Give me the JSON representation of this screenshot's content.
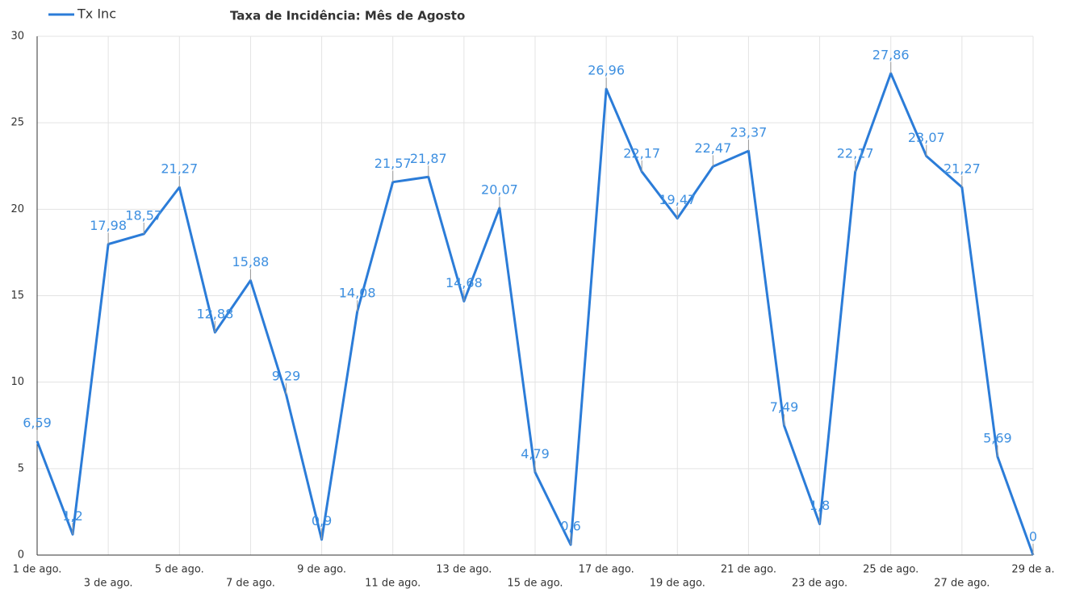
{
  "chart_data": {
    "type": "line",
    "title": "Taxa de Incidência:  Mês de Agosto",
    "categories": [
      "1 de ago.",
      null,
      "3 de ago.",
      null,
      "5 de ago.",
      null,
      "7 de ago.",
      null,
      "9 de ago.",
      null,
      "11 de ago.",
      null,
      "13 de ago.",
      null,
      "15 de ago.",
      null,
      "17 de ago.",
      null,
      "19 de ago.",
      null,
      "21 de ago.",
      null,
      "23 de ago.",
      null,
      "25 de ago.",
      null,
      "27 de ago.",
      null,
      "29 de a."
    ],
    "series": [
      {
        "name": "Tx Inc",
        "color": "#2b7cd8",
        "values": [
          6.59,
          1.2,
          17.98,
          18.57,
          21.27,
          12.88,
          15.88,
          9.29,
          0.9,
          14.08,
          21.57,
          21.87,
          14.68,
          20.07,
          4.79,
          0.6,
          26.96,
          22.17,
          19.47,
          22.47,
          23.37,
          7.49,
          1.8,
          22.17,
          27.86,
          23.07,
          21.27,
          5.69,
          0
        ],
        "value_labels": [
          "6,59",
          "1,2",
          "17,98",
          "18,57",
          "21,27",
          "12,88",
          "15,88",
          "9,29",
          "0,9",
          "14,08",
          "21,57",
          "21,87",
          "14,68",
          "20,07",
          "4,79",
          "0,6",
          "26,96",
          "22,17",
          "19,47",
          "22,47",
          "23,37",
          "7,49",
          "1,8",
          "22,17",
          "27,86",
          "23,07",
          "21,27",
          "5,69",
          "0"
        ]
      }
    ],
    "ylim": [
      0,
      30
    ],
    "yticks": [
      0,
      5,
      10,
      15,
      20,
      25,
      30
    ],
    "grid": true,
    "legend": "top-left"
  }
}
